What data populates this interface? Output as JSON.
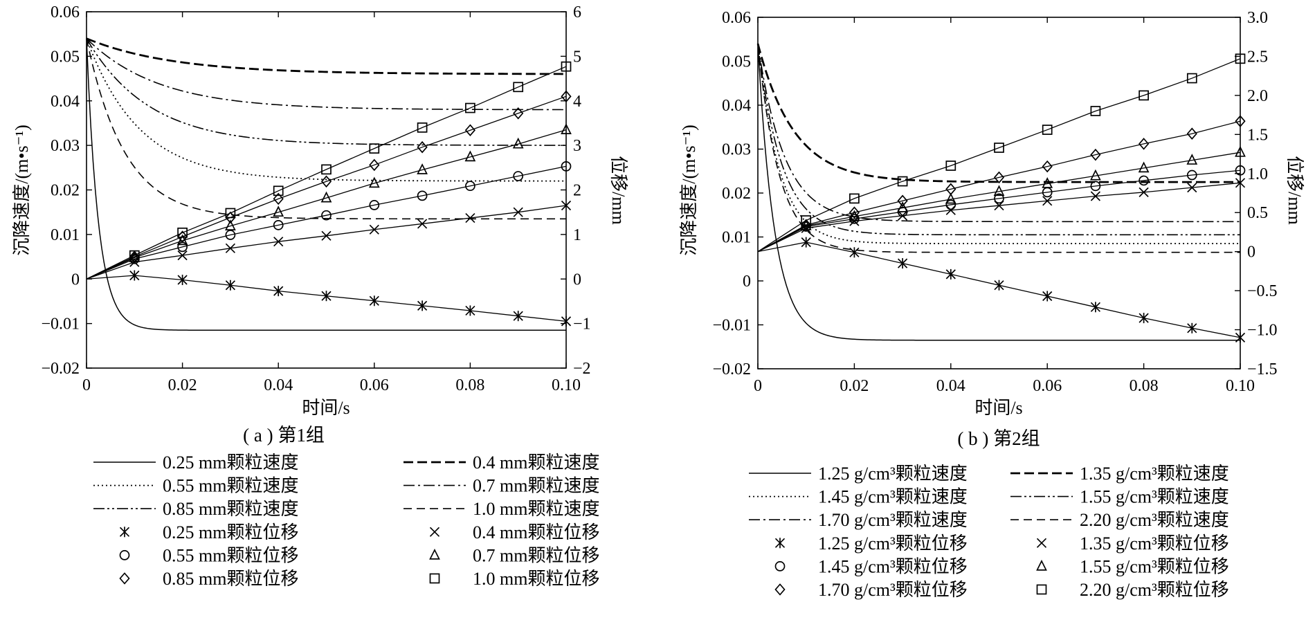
{
  "chart_data": [
    {
      "type": "line",
      "caption": "( a ) 第1组",
      "xlabel": "时间/s",
      "ylabel_left": "沉降速度/(m•s⁻¹)",
      "ylabel_right": "位移/mm",
      "xlim": [
        0,
        0.1
      ],
      "ylim_left": [
        -0.02,
        0.06
      ],
      "ylim_right": [
        -2,
        6
      ],
      "x_ticks": [
        "0",
        "0.02",
        "0.04",
        "0.06",
        "0.08",
        "0.10"
      ],
      "y_left_ticks": [
        "0.06",
        "0.05",
        "0.04",
        "0.03",
        "0.02",
        "0.01",
        "0",
        "−0.01",
        "−0.02"
      ],
      "y_right_ticks": [
        "6",
        "5",
        "4",
        "3",
        "2",
        "1",
        "0",
        "−1",
        "−2"
      ],
      "velocity_series": [
        {
          "name": "0.25 mm颗粒速度",
          "style": "solid",
          "v0": 0.054,
          "v_terminal": -0.0115,
          "tau": 0.0025
        },
        {
          "name": "0.4 mm颗粒速度",
          "style": "dashed-thick",
          "v0": 0.054,
          "v_terminal": 0.046,
          "tau": 0.018
        },
        {
          "name": "0.55 mm颗粒速度",
          "style": "dotted",
          "v0": 0.054,
          "v_terminal": 0.022,
          "tau": 0.011
        },
        {
          "name": "0.7 mm颗粒速度",
          "style": "dashdot",
          "v0": 0.054,
          "v_terminal": 0.038,
          "tau": 0.015
        },
        {
          "name": "0.85 mm颗粒速度",
          "style": "dashdotdot",
          "v0": 0.054,
          "v_terminal": 0.03,
          "tau": 0.013
        },
        {
          "name": "1.0 mm颗粒速度",
          "style": "dashed",
          "v0": 0.054,
          "v_terminal": 0.0135,
          "tau": 0.008
        }
      ],
      "displacement_x": [
        0.01,
        0.02,
        0.03,
        0.04,
        0.05,
        0.06,
        0.07,
        0.08,
        0.09,
        0.1
      ],
      "displacement_series": [
        {
          "name": "0.25 mm颗粒位移",
          "marker": "asterisk",
          "values": [
            0.08,
            -0.02,
            -0.14,
            -0.27,
            -0.38,
            -0.49,
            -0.6,
            -0.71,
            -0.83,
            -0.95
          ]
        },
        {
          "name": "0.4 mm颗粒位移",
          "marker": "x",
          "values": [
            0.38,
            0.53,
            0.69,
            0.84,
            0.97,
            1.11,
            1.24,
            1.37,
            1.5,
            1.65
          ]
        },
        {
          "name": "0.55 mm颗粒位移",
          "marker": "circle",
          "values": [
            0.45,
            0.72,
            0.99,
            1.21,
            1.43,
            1.66,
            1.87,
            2.09,
            2.31,
            2.53
          ]
        },
        {
          "name": "0.7 mm颗粒位移",
          "marker": "triangle",
          "values": [
            0.48,
            0.86,
            1.19,
            1.5,
            1.82,
            2.15,
            2.45,
            2.74,
            3.03,
            3.35
          ]
        },
        {
          "name": "0.85 mm颗粒位移",
          "marker": "diamond",
          "values": [
            0.5,
            0.95,
            1.38,
            1.8,
            2.19,
            2.56,
            2.96,
            3.34,
            3.72,
            4.1
          ]
        },
        {
          "name": "1.0 mm颗粒位移",
          "marker": "square",
          "values": [
            0.53,
            1.04,
            1.48,
            1.98,
            2.46,
            2.93,
            3.4,
            3.84,
            4.31,
            4.77
          ]
        }
      ]
    },
    {
      "type": "line",
      "caption": "( b ) 第2组",
      "xlabel": "时间/s",
      "ylabel_left": "沉降速度/(m•s⁻¹)",
      "ylabel_right": "位移/mm",
      "xlim": [
        0,
        0.1
      ],
      "ylim_left": [
        -0.02,
        0.06
      ],
      "ylim_right": [
        -1.5,
        3.0
      ],
      "x_ticks": [
        "0",
        "0.02",
        "0.04",
        "0.06",
        "0.08",
        "0.10"
      ],
      "y_left_ticks": [
        "0.06",
        "0.05",
        "0.04",
        "0.03",
        "0.02",
        "0.01",
        "0",
        "−0.01",
        "−0.02"
      ],
      "y_right_ticks": [
        "3.0",
        "2.5",
        "2.0",
        "1.5",
        "1.0",
        "0.5",
        "0",
        "−0.5",
        "−1.0",
        "−1.5"
      ],
      "velocity_series": [
        {
          "name": "1.25 g/cm³颗粒速度",
          "style": "solid",
          "v0": 0.054,
          "v_terminal": -0.0135,
          "tau": 0.0035
        },
        {
          "name": "1.35 g/cm³颗粒速度",
          "style": "dashed-thick",
          "v0": 0.054,
          "v_terminal": 0.0225,
          "tau": 0.0075
        },
        {
          "name": "1.45 g/cm³颗粒速度",
          "style": "dotted",
          "v0": 0.054,
          "v_terminal": 0.0085,
          "tau": 0.0045
        },
        {
          "name": "1.55 g/cm³颗粒速度",
          "style": "dashdotdot",
          "v0": 0.054,
          "v_terminal": 0.0105,
          "tau": 0.005
        },
        {
          "name": "1.70 g/cm³颗粒速度",
          "style": "dashdot",
          "v0": 0.054,
          "v_terminal": 0.0135,
          "tau": 0.0055
        },
        {
          "name": "2.20 g/cm³颗粒速度",
          "style": "dashed",
          "v0": 0.054,
          "v_terminal": 0.0065,
          "tau": 0.0045
        }
      ],
      "displacement_x": [
        0.01,
        0.02,
        0.03,
        0.04,
        0.05,
        0.06,
        0.07,
        0.08,
        0.09,
        0.1
      ],
      "displacement_series": [
        {
          "name": "1.25 g/cm³颗粒位移",
          "marker": "asterisk",
          "values": [
            0.12,
            -0.01,
            -0.15,
            -0.29,
            -0.43,
            -0.57,
            -0.71,
            -0.85,
            -0.98,
            -1.1
          ]
        },
        {
          "name": "1.35 g/cm³颗粒位移",
          "marker": "x",
          "values": [
            0.3,
            0.39,
            0.46,
            0.53,
            0.59,
            0.65,
            0.71,
            0.76,
            0.82,
            0.88
          ]
        },
        {
          "name": "1.45 g/cm³颗粒位移",
          "marker": "circle",
          "values": [
            0.32,
            0.42,
            0.51,
            0.6,
            0.68,
            0.76,
            0.84,
            0.91,
            0.98,
            1.04
          ]
        },
        {
          "name": "1.55 g/cm³颗粒位移",
          "marker": "triangle",
          "values": [
            0.33,
            0.45,
            0.56,
            0.67,
            0.77,
            0.87,
            0.97,
            1.07,
            1.17,
            1.27
          ]
        },
        {
          "name": "1.70 g/cm³颗粒位移",
          "marker": "diamond",
          "values": [
            0.34,
            0.5,
            0.65,
            0.8,
            0.95,
            1.09,
            1.24,
            1.38,
            1.51,
            1.67
          ]
        },
        {
          "name": "2.20 g/cm³颗粒位移",
          "marker": "square",
          "values": [
            0.4,
            0.68,
            0.9,
            1.1,
            1.33,
            1.56,
            1.8,
            2.0,
            2.22,
            2.47
          ]
        }
      ]
    }
  ],
  "legends": [
    {
      "items": [
        {
          "label": "0.25 mm颗粒速度",
          "kind": "line",
          "style": "solid"
        },
        {
          "label": "0.4 mm颗粒速度",
          "kind": "line",
          "style": "dashed-thick"
        },
        {
          "label": "0.55 mm颗粒速度",
          "kind": "line",
          "style": "dotted"
        },
        {
          "label": "0.7 mm颗粒速度",
          "kind": "line",
          "style": "dashdot"
        },
        {
          "label": "0.85 mm颗粒速度",
          "kind": "line",
          "style": "dashdotdot"
        },
        {
          "label": "1.0 mm颗粒速度",
          "kind": "line",
          "style": "dashed"
        },
        {
          "label": "0.25 mm颗粒位移",
          "kind": "marker",
          "style": "asterisk"
        },
        {
          "label": "0.4 mm颗粒位移",
          "kind": "marker",
          "style": "x"
        },
        {
          "label": "0.55 mm颗粒位移",
          "kind": "marker",
          "style": "circle"
        },
        {
          "label": "0.7 mm颗粒位移",
          "kind": "marker",
          "style": "triangle"
        },
        {
          "label": "0.85 mm颗粒位移",
          "kind": "marker",
          "style": "diamond"
        },
        {
          "label": "1.0 mm颗粒位移",
          "kind": "marker",
          "style": "square"
        }
      ]
    },
    {
      "items": [
        {
          "label": "1.25 g/cm³颗粒速度",
          "kind": "line",
          "style": "solid"
        },
        {
          "label": "1.35 g/cm³颗粒速度",
          "kind": "line",
          "style": "dashed-thick"
        },
        {
          "label": "1.45 g/cm³颗粒速度",
          "kind": "line",
          "style": "dotted"
        },
        {
          "label": "1.55 g/cm³颗粒速度",
          "kind": "line",
          "style": "dashdotdot"
        },
        {
          "label": "1.70 g/cm³颗粒速度",
          "kind": "line",
          "style": "dashdot"
        },
        {
          "label": "2.20 g/cm³颗粒速度",
          "kind": "line",
          "style": "dashed"
        },
        {
          "label": "1.25 g/cm³颗粒位移",
          "kind": "marker",
          "style": "asterisk"
        },
        {
          "label": "1.35 g/cm³颗粒位移",
          "kind": "marker",
          "style": "x"
        },
        {
          "label": "1.45 g/cm³颗粒位移",
          "kind": "marker",
          "style": "circle"
        },
        {
          "label": "1.55 g/cm³颗粒位移",
          "kind": "marker",
          "style": "triangle"
        },
        {
          "label": "1.70 g/cm³颗粒位移",
          "kind": "marker",
          "style": "diamond"
        },
        {
          "label": "2.20 g/cm³颗粒位移",
          "kind": "marker",
          "style": "square"
        }
      ]
    }
  ]
}
